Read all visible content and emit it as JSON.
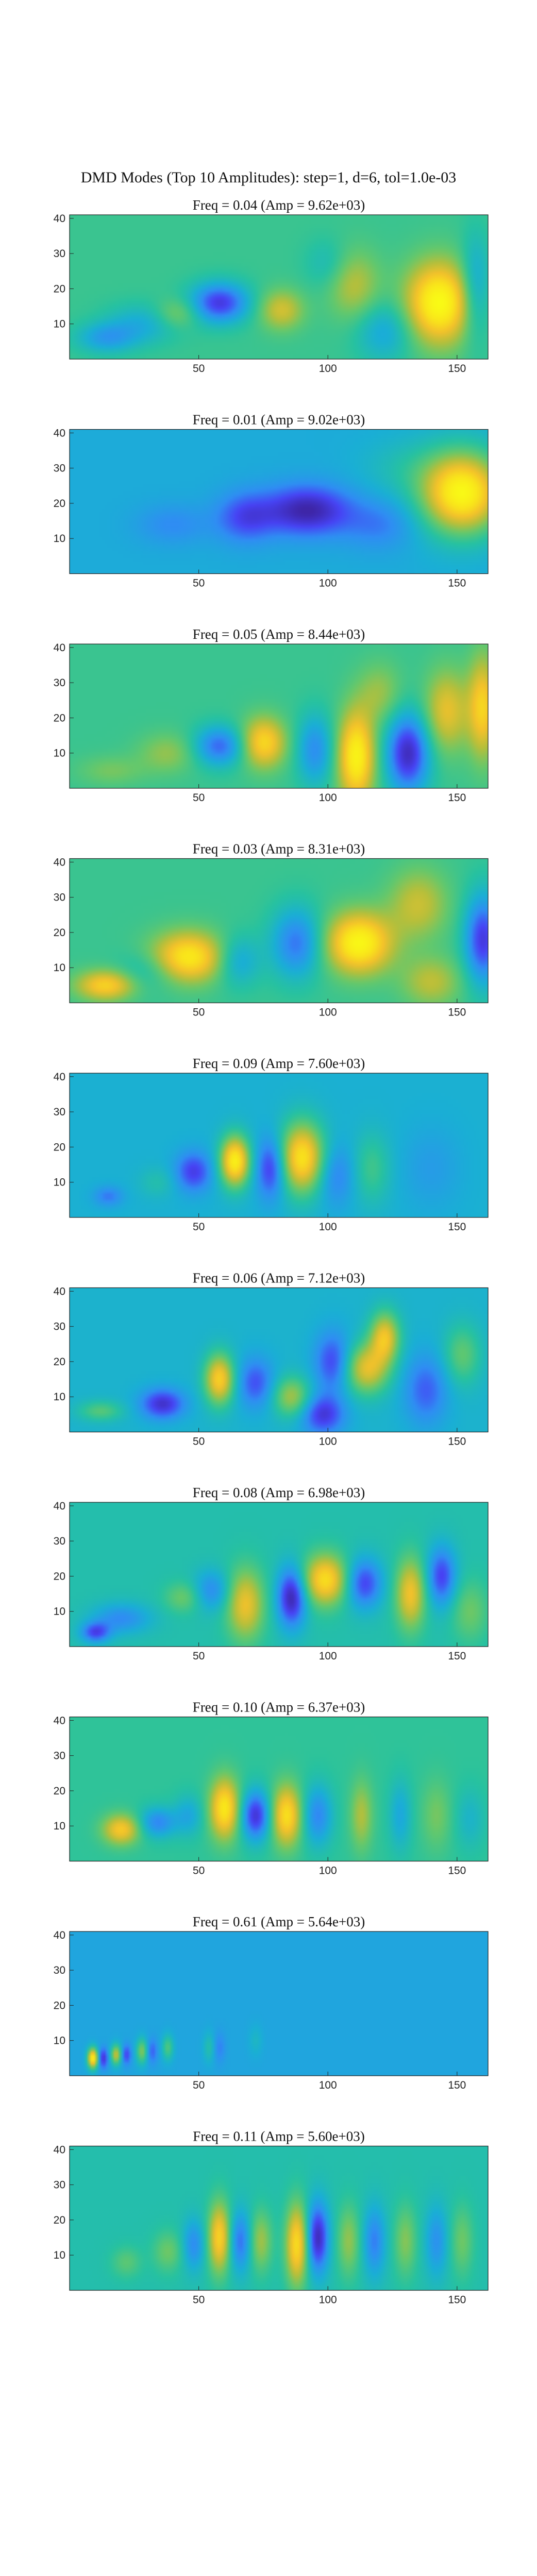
{
  "figure": {
    "suptitle": "DMD Modes (Top 10 Amplitudes): step=1, d=6, tol=1.0e-03"
  },
  "colormap": [
    "#3e26a8",
    "#4743f4",
    "#2f8ef3",
    "#1aafd5",
    "#27c2a0",
    "#63c86d",
    "#b6bf3b",
    "#f3c12b",
    "#f9e31b",
    "#f9fb15"
  ],
  "chart_data": [
    {
      "type": "heatmap",
      "title": "Freq = 0.04 (Amp = 9.62e+03)",
      "xlabel": "",
      "ylabel": "",
      "xlim": [
        0,
        162
      ],
      "ylim": [
        0,
        41
      ],
      "xticks": [
        50,
        100,
        150
      ],
      "yticks": [
        10,
        20,
        30,
        40
      ],
      "base": 0.48,
      "blobs": [
        {
          "x": 143,
          "y": 16,
          "sx": 9,
          "sy": 8,
          "a": 0.52
        },
        {
          "x": 122,
          "y": 8,
          "sx": 8,
          "sy": 6,
          "a": -0.18
        },
        {
          "x": 110,
          "y": 21,
          "sx": 7,
          "sy": 7,
          "a": 0.2
        },
        {
          "x": 100,
          "y": 27,
          "sx": 6,
          "sy": 5,
          "a": -0.1
        },
        {
          "x": 82,
          "y": 14,
          "sx": 6,
          "sy": 4,
          "a": 0.24
        },
        {
          "x": 58,
          "y": 16,
          "sx": 8,
          "sy": 4,
          "a": -0.4
        },
        {
          "x": 42,
          "y": 13,
          "sx": 6,
          "sy": 3,
          "a": 0.15
        },
        {
          "x": 28,
          "y": 10,
          "sx": 10,
          "sy": 4,
          "a": -0.15
        },
        {
          "x": 14,
          "y": 6,
          "sx": 8,
          "sy": 3,
          "a": -0.2
        },
        {
          "x": 157,
          "y": 20,
          "sx": 4,
          "sy": 10,
          "a": -0.22
        }
      ]
    },
    {
      "type": "heatmap",
      "title": "Freq = 0.01 (Amp = 9.02e+03)",
      "xlabel": "",
      "ylabel": "",
      "xlim": [
        0,
        162
      ],
      "ylim": [
        0,
        41
      ],
      "xticks": [
        50,
        100,
        150
      ],
      "yticks": [
        10,
        20,
        30,
        40
      ],
      "base": 0.32,
      "blobs": [
        {
          "x": 152,
          "y": 23,
          "sx": 11,
          "sy": 8,
          "a": 0.66
        },
        {
          "x": 92,
          "y": 18,
          "sx": 12,
          "sy": 5,
          "a": -0.32
        },
        {
          "x": 68,
          "y": 16,
          "sx": 8,
          "sy": 5,
          "a": -0.2
        },
        {
          "x": 120,
          "y": 14,
          "sx": 10,
          "sy": 5,
          "a": -0.12
        },
        {
          "x": 40,
          "y": 14,
          "sx": 10,
          "sy": 4,
          "a": -0.1
        },
        {
          "x": 130,
          "y": 30,
          "sx": 12,
          "sy": 6,
          "a": 0.08
        }
      ]
    },
    {
      "type": "heatmap",
      "title": "Freq = 0.05 (Amp = 8.44e+03)",
      "xlabel": "",
      "ylabel": "",
      "xlim": [
        0,
        162
      ],
      "ylim": [
        0,
        41
      ],
      "xticks": [
        50,
        100,
        150
      ],
      "yticks": [
        10,
        20,
        30,
        40
      ],
      "base": 0.48,
      "blobs": [
        {
          "x": 111,
          "y": 9,
          "sx": 5,
          "sy": 9,
          "a": 0.48
        },
        {
          "x": 131,
          "y": 10,
          "sx": 6,
          "sy": 8,
          "a": -0.45
        },
        {
          "x": 95,
          "y": 11,
          "sx": 5,
          "sy": 7,
          "a": -0.25
        },
        {
          "x": 75,
          "y": 13,
          "sx": 6,
          "sy": 5,
          "a": 0.38
        },
        {
          "x": 58,
          "y": 12,
          "sx": 7,
          "sy": 4,
          "a": -0.32
        },
        {
          "x": 146,
          "y": 22,
          "sx": 6,
          "sy": 8,
          "a": 0.28
        },
        {
          "x": 160,
          "y": 23,
          "sx": 4,
          "sy": 10,
          "a": 0.35
        },
        {
          "x": 120,
          "y": 27,
          "sx": 6,
          "sy": 6,
          "a": 0.15
        },
        {
          "x": 38,
          "y": 10,
          "sx": 8,
          "sy": 4,
          "a": 0.14
        },
        {
          "x": 16,
          "y": 5,
          "sx": 9,
          "sy": 3,
          "a": 0.1
        }
      ]
    },
    {
      "type": "heatmap",
      "title": "Freq = 0.03 (Amp = 8.31e+03)",
      "xlabel": "",
      "ylabel": "",
      "xlim": [
        0,
        162
      ],
      "ylim": [
        0,
        41
      ],
      "xticks": [
        50,
        100,
        150
      ],
      "yticks": [
        10,
        20,
        30,
        40
      ],
      "base": 0.48,
      "blobs": [
        {
          "x": 112,
          "y": 17,
          "sx": 9,
          "sy": 6,
          "a": 0.5
        },
        {
          "x": 46,
          "y": 13,
          "sx": 10,
          "sy": 5,
          "a": 0.44
        },
        {
          "x": 160,
          "y": 18,
          "sx": 5,
          "sy": 9,
          "a": -0.4
        },
        {
          "x": 88,
          "y": 17,
          "sx": 7,
          "sy": 7,
          "a": -0.3
        },
        {
          "x": 65,
          "y": 12,
          "sx": 6,
          "sy": 5,
          "a": -0.2
        },
        {
          "x": 135,
          "y": 28,
          "sx": 8,
          "sy": 7,
          "a": 0.22
        },
        {
          "x": 14,
          "y": 5,
          "sx": 8,
          "sy": 3,
          "a": 0.36
        },
        {
          "x": 140,
          "y": 6,
          "sx": 8,
          "sy": 5,
          "a": 0.2
        },
        {
          "x": 30,
          "y": 9,
          "sx": 8,
          "sy": 4,
          "a": -0.12
        }
      ]
    },
    {
      "type": "heatmap",
      "title": "Freq = 0.09 (Amp = 7.60e+03)",
      "xlabel": "",
      "ylabel": "",
      "xlim": [
        0,
        162
      ],
      "ylim": [
        0,
        41
      ],
      "xticks": [
        50,
        100,
        150
      ],
      "yticks": [
        10,
        20,
        30,
        40
      ],
      "base": 0.34,
      "blobs": [
        {
          "x": 64,
          "y": 16,
          "sx": 4,
          "sy": 5,
          "a": 0.6
        },
        {
          "x": 90,
          "y": 17,
          "sx": 6,
          "sy": 7,
          "a": 0.55
        },
        {
          "x": 78,
          "y": 14,
          "sx": 4,
          "sy": 6,
          "a": -0.28
        },
        {
          "x": 48,
          "y": 13,
          "sx": 5,
          "sy": 4,
          "a": -0.25
        },
        {
          "x": 103,
          "y": 12,
          "sx": 5,
          "sy": 6,
          "a": -0.15
        },
        {
          "x": 117,
          "y": 14,
          "sx": 5,
          "sy": 7,
          "a": 0.15
        },
        {
          "x": 34,
          "y": 10,
          "sx": 5,
          "sy": 3,
          "a": 0.08
        },
        {
          "x": 15,
          "y": 6,
          "sx": 4,
          "sy": 2,
          "a": -0.15
        },
        {
          "x": 140,
          "y": 14,
          "sx": 8,
          "sy": 8,
          "a": -0.07
        }
      ]
    },
    {
      "type": "heatmap",
      "title": "Freq = 0.06 (Amp = 7.12e+03)",
      "xlabel": "",
      "ylabel": "",
      "xlim": [
        0,
        162
      ],
      "ylim": [
        0,
        41
      ],
      "xticks": [
        50,
        100,
        150
      ],
      "yticks": [
        10,
        20,
        30,
        40
      ],
      "base": 0.35,
      "blobs": [
        {
          "x": 58,
          "y": 15,
          "sx": 4,
          "sy": 5,
          "a": 0.48
        },
        {
          "x": 115,
          "y": 18,
          "sx": 6,
          "sy": 5,
          "a": 0.4
        },
        {
          "x": 122,
          "y": 27,
          "sx": 4,
          "sy": 5,
          "a": 0.42
        },
        {
          "x": 86,
          "y": 10,
          "sx": 5,
          "sy": 4,
          "a": 0.3
        },
        {
          "x": 36,
          "y": 8,
          "sx": 6,
          "sy": 3,
          "a": -0.3
        },
        {
          "x": 72,
          "y": 14,
          "sx": 5,
          "sy": 5,
          "a": -0.22
        },
        {
          "x": 98,
          "y": 5,
          "sx": 6,
          "sy": 4,
          "a": -0.28
        },
        {
          "x": 102,
          "y": 20,
          "sx": 5,
          "sy": 6,
          "a": -0.25
        },
        {
          "x": 138,
          "y": 12,
          "sx": 6,
          "sy": 7,
          "a": -0.2
        },
        {
          "x": 152,
          "y": 22,
          "sx": 5,
          "sy": 6,
          "a": 0.2
        },
        {
          "x": 12,
          "y": 6,
          "sx": 6,
          "sy": 2,
          "a": 0.18
        }
      ]
    },
    {
      "type": "heatmap",
      "title": "Freq = 0.08 (Amp = 6.98e+03)",
      "xlabel": "",
      "ylabel": "",
      "xlim": [
        0,
        162
      ],
      "ylim": [
        0,
        41
      ],
      "xticks": [
        50,
        100,
        150
      ],
      "yticks": [
        10,
        20,
        30,
        40
      ],
      "base": 0.42,
      "blobs": [
        {
          "x": 99,
          "y": 19,
          "sx": 6,
          "sy": 5,
          "a": 0.45
        },
        {
          "x": 68,
          "y": 12,
          "sx": 5,
          "sy": 7,
          "a": 0.35
        },
        {
          "x": 132,
          "y": 15,
          "sx": 4,
          "sy": 7,
          "a": 0.36
        },
        {
          "x": 86,
          "y": 14,
          "sx": 4,
          "sy": 6,
          "a": -0.42
        },
        {
          "x": 114,
          "y": 18,
          "sx": 5,
          "sy": 5,
          "a": -0.32
        },
        {
          "x": 144,
          "y": 20,
          "sx": 4,
          "sy": 6,
          "a": -0.32
        },
        {
          "x": 55,
          "y": 16,
          "sx": 5,
          "sy": 4,
          "a": -0.2
        },
        {
          "x": 44,
          "y": 14,
          "sx": 5,
          "sy": 3,
          "a": 0.15
        },
        {
          "x": 20,
          "y": 8,
          "sx": 8,
          "sy": 3,
          "a": -0.2
        },
        {
          "x": 10,
          "y": 4,
          "sx": 4,
          "sy": 2,
          "a": -0.3
        },
        {
          "x": 155,
          "y": 10,
          "sx": 5,
          "sy": 6,
          "a": 0.15
        }
      ]
    },
    {
      "type": "heatmap",
      "title": "Freq = 0.10 (Amp = 6.37e+03)",
      "xlabel": "",
      "ylabel": "",
      "xlim": [
        0,
        162
      ],
      "ylim": [
        0,
        41
      ],
      "xticks": [
        50,
        100,
        150
      ],
      "yticks": [
        10,
        20,
        30,
        40
      ],
      "base": 0.46,
      "blobs": [
        {
          "x": 60,
          "y": 15,
          "sx": 4,
          "sy": 6,
          "a": 0.45
        },
        {
          "x": 84,
          "y": 13,
          "sx": 4,
          "sy": 6,
          "a": 0.42
        },
        {
          "x": 72,
          "y": 13,
          "sx": 4,
          "sy": 5,
          "a": -0.4
        },
        {
          "x": 96,
          "y": 13,
          "sx": 4,
          "sy": 6,
          "a": -0.25
        },
        {
          "x": 20,
          "y": 9,
          "sx": 5,
          "sy": 3,
          "a": 0.35
        },
        {
          "x": 34,
          "y": 11,
          "sx": 5,
          "sy": 3,
          "a": -0.25
        },
        {
          "x": 46,
          "y": 13,
          "sx": 4,
          "sy": 4,
          "a": -0.15
        },
        {
          "x": 113,
          "y": 13,
          "sx": 3,
          "sy": 7,
          "a": 0.2
        },
        {
          "x": 128,
          "y": 13,
          "sx": 3,
          "sy": 7,
          "a": -0.15
        },
        {
          "x": 142,
          "y": 13,
          "sx": 4,
          "sy": 7,
          "a": 0.12
        },
        {
          "x": 155,
          "y": 12,
          "sx": 4,
          "sy": 6,
          "a": -0.1
        }
      ]
    },
    {
      "type": "heatmap",
      "title": "Freq = 0.61 (Amp = 5.64e+03)",
      "xlabel": "",
      "ylabel": "",
      "xlim": [
        0,
        162
      ],
      "ylim": [
        0,
        41
      ],
      "xticks": [
        50,
        100,
        150
      ],
      "yticks": [
        10,
        20,
        30,
        40
      ],
      "base": 0.3,
      "blobs": [
        {
          "x": 9,
          "y": 5,
          "sx": 1.4,
          "sy": 2,
          "a": 0.65
        },
        {
          "x": 13,
          "y": 5,
          "sx": 1.3,
          "sy": 2,
          "a": -0.25
        },
        {
          "x": 18,
          "y": 6,
          "sx": 1.4,
          "sy": 2,
          "a": 0.4
        },
        {
          "x": 22,
          "y": 6,
          "sx": 1.3,
          "sy": 2,
          "a": -0.2
        },
        {
          "x": 28,
          "y": 7,
          "sx": 1.5,
          "sy": 2.5,
          "a": 0.3
        },
        {
          "x": 32,
          "y": 7,
          "sx": 1.4,
          "sy": 2.5,
          "a": -0.15
        },
        {
          "x": 38,
          "y": 8,
          "sx": 1.5,
          "sy": 2.5,
          "a": 0.22
        },
        {
          "x": 54,
          "y": 8,
          "sx": 1.6,
          "sy": 3,
          "a": 0.12
        },
        {
          "x": 58,
          "y": 8,
          "sx": 1.6,
          "sy": 3,
          "a": -0.1
        },
        {
          "x": 72,
          "y": 10,
          "sx": 1.8,
          "sy": 3,
          "a": 0.07
        }
      ]
    },
    {
      "type": "heatmap",
      "title": "Freq = 0.11 (Amp = 5.60e+03)",
      "xlabel": "",
      "ylabel": "",
      "xlim": [
        0,
        162
      ],
      "ylim": [
        0,
        41
      ],
      "xticks": [
        50,
        100,
        150
      ],
      "yticks": [
        10,
        20,
        30,
        40
      ],
      "base": 0.42,
      "blobs": [
        {
          "x": 58,
          "y": 15,
          "sx": 3,
          "sy": 7,
          "a": 0.42
        },
        {
          "x": 88,
          "y": 13,
          "sx": 3,
          "sy": 8,
          "a": 0.45
        },
        {
          "x": 96,
          "y": 15,
          "sx": 3,
          "sy": 7,
          "a": -0.4
        },
        {
          "x": 66,
          "y": 14,
          "sx": 3,
          "sy": 6,
          "a": -0.25
        },
        {
          "x": 74,
          "y": 14,
          "sx": 3,
          "sy": 6,
          "a": 0.22
        },
        {
          "x": 48,
          "y": 13,
          "sx": 3,
          "sy": 5,
          "a": -0.2
        },
        {
          "x": 38,
          "y": 11,
          "sx": 4,
          "sy": 4,
          "a": 0.15
        },
        {
          "x": 108,
          "y": 14,
          "sx": 3,
          "sy": 7,
          "a": 0.2
        },
        {
          "x": 118,
          "y": 14,
          "sx": 3,
          "sy": 7,
          "a": -0.22
        },
        {
          "x": 130,
          "y": 14,
          "sx": 3,
          "sy": 7,
          "a": 0.18
        },
        {
          "x": 142,
          "y": 14,
          "sx": 3,
          "sy": 7,
          "a": -0.18
        },
        {
          "x": 152,
          "y": 14,
          "sx": 3,
          "sy": 7,
          "a": 0.15
        },
        {
          "x": 22,
          "y": 8,
          "sx": 4,
          "sy": 3,
          "a": 0.12
        }
      ]
    }
  ]
}
